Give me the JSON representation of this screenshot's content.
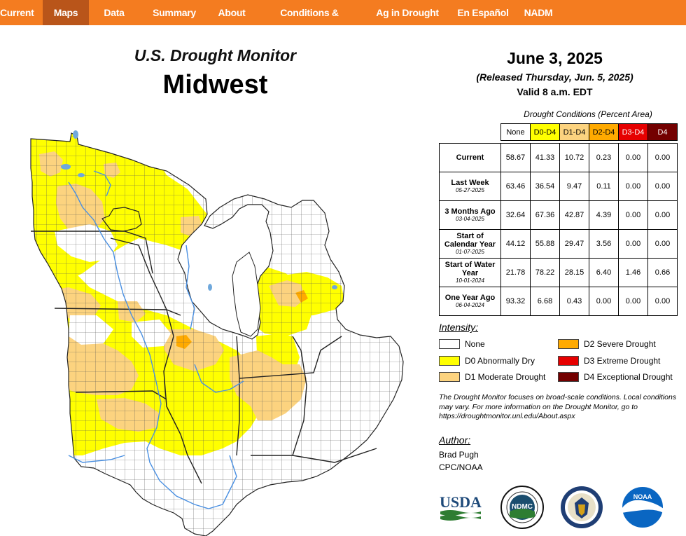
{
  "nav": {
    "items": [
      "Current",
      "Maps",
      "Data",
      "Summary",
      "About",
      "Conditions & Outlooks",
      "Ag in Drought",
      "En Español",
      "NADM"
    ],
    "active_index": 1
  },
  "map_title": {
    "line1": "U.S. Drought Monitor",
    "line2": "Midwest"
  },
  "date_block": {
    "date": "June 3, 2025",
    "released": "(Released Thursday, Jun. 5, 2025)",
    "valid": "Valid 8 a.m. EDT"
  },
  "table": {
    "caption": "Drought Conditions (Percent Area)",
    "headers": [
      {
        "label": "None",
        "bg": "#ffffff",
        "fg": "#000000"
      },
      {
        "label": "D0-D4",
        "bg": "#ffff00",
        "fg": "#000000"
      },
      {
        "label": "D1-D4",
        "bg": "#fcd37f",
        "fg": "#000000"
      },
      {
        "label": "D2-D4",
        "bg": "#ffaa00",
        "fg": "#000000"
      },
      {
        "label": "D3-D4",
        "bg": "#e60000",
        "fg": "#ffffff"
      },
      {
        "label": "D4",
        "bg": "#730000",
        "fg": "#ffffff"
      }
    ],
    "rows": [
      {
        "label": "Current",
        "sub": "",
        "values": [
          "58.67",
          "41.33",
          "10.72",
          "0.23",
          "0.00",
          "0.00"
        ]
      },
      {
        "label": "Last Week",
        "sub": "05-27-2025",
        "values": [
          "63.46",
          "36.54",
          "9.47",
          "0.11",
          "0.00",
          "0.00"
        ]
      },
      {
        "label": "3 Months Ago",
        "sub": "03-04-2025",
        "values": [
          "32.64",
          "67.36",
          "42.87",
          "4.39",
          "0.00",
          "0.00"
        ]
      },
      {
        "label": "Start of Calendar Year",
        "sub": "01-07-2025",
        "values": [
          "44.12",
          "55.88",
          "29.47",
          "3.56",
          "0.00",
          "0.00"
        ]
      },
      {
        "label": "Start of Water Year",
        "sub": "10-01-2024",
        "values": [
          "21.78",
          "78.22",
          "28.15",
          "6.40",
          "1.46",
          "0.66"
        ]
      },
      {
        "label": "One Year Ago",
        "sub": "06-04-2024",
        "values": [
          "93.32",
          "6.68",
          "0.43",
          "0.00",
          "0.00",
          "0.00"
        ]
      }
    ]
  },
  "legend": {
    "title": "Intensity:",
    "items": [
      {
        "label": "None",
        "color": "#ffffff"
      },
      {
        "label": "D0 Abnormally Dry",
        "color": "#ffff00"
      },
      {
        "label": "D1 Moderate Drought",
        "color": "#fcd37f"
      },
      {
        "label": "D2 Severe Drought",
        "color": "#ffaa00"
      },
      {
        "label": "D3 Extreme Drought",
        "color": "#e60000"
      },
      {
        "label": "D4 Exceptional Drought",
        "color": "#730000"
      }
    ]
  },
  "note": "The Drought Monitor focuses on broad-scale conditions. Local conditions may vary. For more information on the Drought Monitor, go to https://droughtmonitor.unl.edu/About.aspx",
  "author": {
    "heading": "Author:",
    "name": "Brad Pugh",
    "org": "CPC/NOAA"
  },
  "logos": {
    "usda": "USDA",
    "ndmc": "NDMC",
    "noaa": "NOAA"
  },
  "colors": {
    "nav_bg": "#f47c20",
    "nav_active": "#b9551a",
    "water": "#6fa8dc",
    "none": "#ffffff",
    "d0": "#ffff00",
    "d1": "#fcd37f",
    "d2": "#ffaa00"
  }
}
